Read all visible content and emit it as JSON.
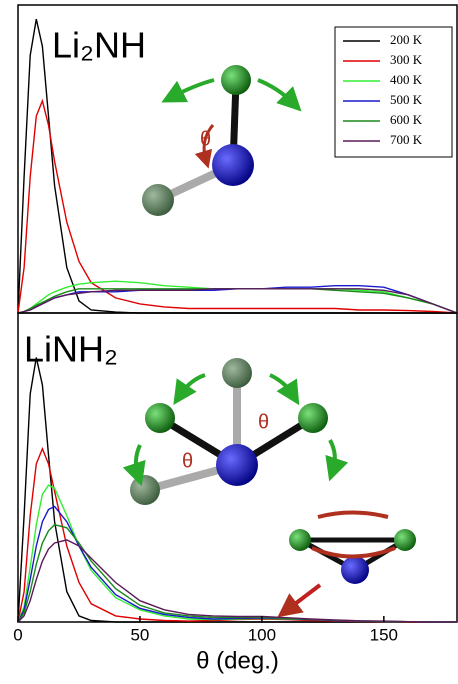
{
  "chart_data": [
    {
      "type": "line",
      "annotations": [
        "Li₂NH",
        "θ"
      ],
      "x": [
        0,
        2.5,
        5,
        7.5,
        10,
        12.5,
        15,
        20,
        25,
        30,
        40,
        50,
        60,
        70,
        80,
        90,
        100,
        110,
        120,
        130,
        140,
        150,
        160,
        170,
        180
      ],
      "xlim": [
        0,
        180
      ],
      "ylim": [
        0,
        100
      ],
      "legend": "upper right",
      "series": [
        {
          "name": "200 K",
          "color": "#000000",
          "values": [
            0,
            45,
            85,
            97,
            88,
            65,
            42,
            15,
            4,
            1,
            0.3,
            0,
            0,
            0,
            0,
            0,
            0,
            0,
            0,
            0,
            0,
            0,
            0,
            0,
            0
          ]
        },
        {
          "name": "300 K",
          "color": "#e00000",
          "values": [
            0,
            15,
            45,
            65,
            70,
            62,
            50,
            30,
            17,
            10,
            5,
            3,
            2,
            1.5,
            1.5,
            1.5,
            1.5,
            1.5,
            1.5,
            1.5,
            1,
            1,
            0.8,
            0.5,
            0
          ]
        },
        {
          "name": "400 K",
          "color": "#33ee33",
          "values": [
            0,
            0.5,
            1.5,
            3,
            4.5,
            6,
            7,
            8.5,
            9.5,
            10,
            10.5,
            10,
            9,
            8.5,
            8,
            8,
            8,
            8,
            8,
            8,
            7.5,
            7,
            5,
            3,
            0
          ]
        },
        {
          "name": "500 K",
          "color": "#1a1acc",
          "values": [
            0,
            0.5,
            1,
            2,
            3,
            4,
            5,
            6,
            7,
            7,
            7,
            7.5,
            7.5,
            7.5,
            7.5,
            8,
            8,
            8.5,
            8.5,
            9,
            9,
            8.5,
            6,
            3,
            0
          ]
        },
        {
          "name": "600 K",
          "color": "#1a8a1a",
          "values": [
            0,
            0.5,
            1.5,
            2.5,
            3.5,
            4.5,
            5.5,
            7,
            8,
            8,
            8,
            8,
            8,
            8,
            8,
            8,
            8,
            8,
            8,
            7.5,
            7,
            6.5,
            5,
            3,
            0
          ]
        },
        {
          "name": "700 K",
          "color": "#5a1a5a",
          "values": [
            0,
            0.5,
            1,
            2,
            3,
            4,
            5,
            6,
            6.5,
            7,
            7.5,
            7.5,
            7.5,
            7.5,
            8,
            8,
            8,
            8,
            8,
            8,
            8,
            7.5,
            6,
            3,
            0
          ]
        }
      ]
    },
    {
      "type": "line",
      "annotations": [
        "LiNH₂",
        "θ",
        "θ"
      ],
      "xlabel": "θ (deg.)",
      "x": [
        0,
        2.5,
        5,
        7.5,
        10,
        12.5,
        15,
        20,
        25,
        30,
        40,
        50,
        60,
        70,
        80,
        90,
        100,
        110,
        120,
        130,
        140,
        150,
        160,
        170,
        180
      ],
      "xlim": [
        0,
        180
      ],
      "ylim": [
        0,
        100
      ],
      "xticks": [
        0,
        50,
        100,
        150
      ],
      "series": [
        {
          "color": "#000000",
          "values": [
            0,
            35,
            75,
            87,
            78,
            55,
            33,
            10,
            2,
            0.5,
            0,
            0,
            0,
            0,
            0,
            0,
            0,
            0,
            0,
            0,
            0,
            0,
            0,
            0,
            0
          ]
        },
        {
          "color": "#e00000",
          "values": [
            0,
            10,
            35,
            52,
            57,
            52,
            43,
            25,
            13,
            6,
            2,
            1,
            0.5,
            0.3,
            0.5,
            0.8,
            1,
            0.8,
            0.5,
            0.3,
            0.2,
            0.1,
            0,
            0,
            0
          ]
        },
        {
          "color": "#33ee33",
          "values": [
            0,
            5,
            18,
            32,
            42,
            45,
            44,
            35,
            25,
            17,
            8,
            4,
            2,
            1,
            0.8,
            1,
            1.2,
            1,
            0.8,
            0.5,
            0.3,
            0.2,
            0.1,
            0,
            0
          ]
        },
        {
          "color": "#1a1acc",
          "values": [
            0,
            4,
            14,
            25,
            33,
            37,
            38,
            33,
            25,
            18,
            9,
            4.5,
            2.5,
            1.5,
            1,
            1.2,
            1.3,
            1.1,
            0.8,
            0.5,
            0.3,
            0.2,
            0.1,
            0,
            0
          ]
        },
        {
          "color": "#1a8a1a",
          "values": [
            0,
            3,
            10,
            19,
            26,
            30,
            32,
            31,
            26,
            20,
            11,
            5.5,
            3,
            2,
            1.5,
            1.5,
            1.5,
            1.2,
            0.9,
            0.6,
            0.4,
            0.2,
            0.1,
            0,
            0
          ]
        },
        {
          "color": "#5a1a5a",
          "values": [
            0,
            2,
            7,
            14,
            20,
            24,
            26,
            27,
            25,
            21,
            13,
            7,
            4,
            2.5,
            2,
            1.8,
            1.8,
            1.4,
            1,
            0.7,
            0.4,
            0.3,
            0.1,
            0,
            0
          ]
        }
      ]
    }
  ]
}
